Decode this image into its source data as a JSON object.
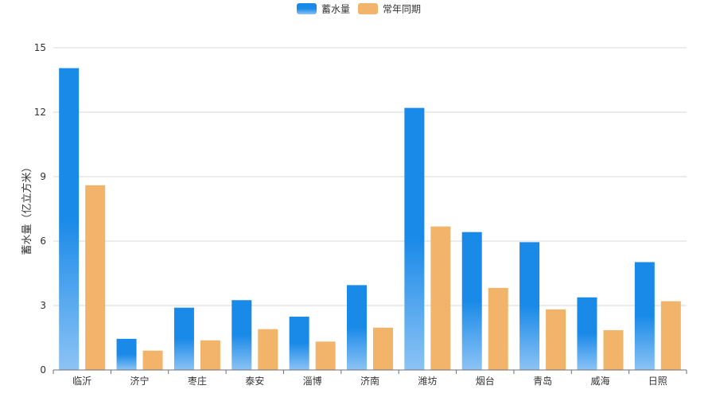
{
  "chart_data": {
    "type": "bar",
    "title": "",
    "ylabel": "蓄水量（亿立方米）",
    "xlabel": "",
    "ylim": [
      0,
      15
    ],
    "yticks": [
      0,
      3,
      6,
      9,
      12,
      15
    ],
    "grid": true,
    "legend_position": "top-center",
    "categories": [
      "临沂",
      "济宁",
      "枣庄",
      "泰安",
      "淄博",
      "济南",
      "潍坊",
      "烟台",
      "青岛",
      "威海",
      "日照"
    ],
    "series": [
      {
        "name": "蓄水量",
        "color": "#1a8ae8",
        "color_light": "#8cc3f5",
        "values": [
          14.05,
          1.45,
          2.9,
          3.25,
          2.48,
          3.95,
          12.2,
          6.42,
          5.95,
          3.38,
          5.02
        ]
      },
      {
        "name": "常年同期",
        "color": "#f2b36a",
        "values": [
          8.6,
          0.9,
          1.38,
          1.9,
          1.32,
          1.97,
          6.68,
          3.82,
          2.82,
          1.85,
          3.2
        ]
      }
    ]
  }
}
